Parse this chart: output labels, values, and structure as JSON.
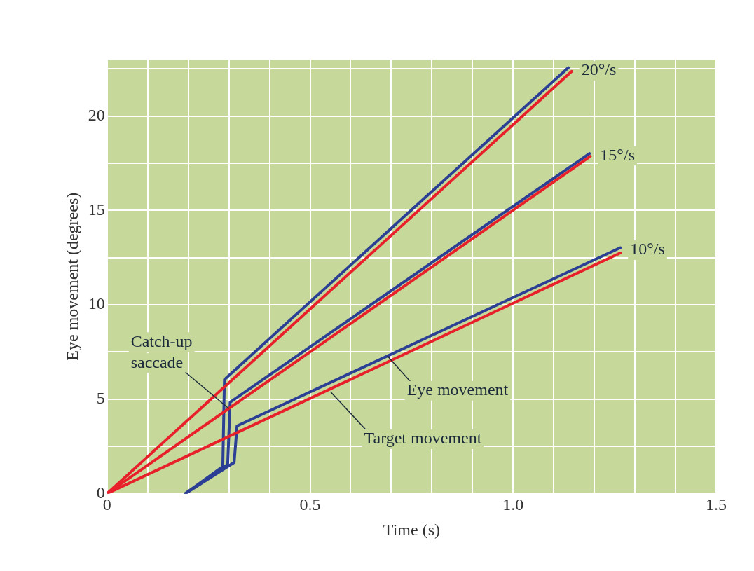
{
  "chart_data": {
    "type": "line",
    "xlabel": "Time (s)",
    "ylabel": "Eye movement (degrees)",
    "xlim": [
      0,
      1.5
    ],
    "ylim": [
      0,
      23
    ],
    "xticks": [
      0,
      {
        "value": 0.1,
        "label": null
      },
      {
        "value": 0.2,
        "label": null
      },
      {
        "value": 0.3,
        "label": null
      },
      {
        "value": 0.4,
        "label": null
      },
      0.5,
      {
        "value": 0.6,
        "label": null
      },
      {
        "value": 0.7,
        "label": null
      },
      {
        "value": 0.8,
        "label": null
      },
      {
        "value": 0.9,
        "label": null
      },
      {
        "value": 1.0,
        "label": "1.0"
      },
      {
        "value": 1.1,
        "label": null
      },
      {
        "value": 1.2,
        "label": null
      },
      {
        "value": 1.3,
        "label": null
      },
      {
        "value": 1.4,
        "label": null
      },
      1.5
    ],
    "yticks": [
      0,
      {
        "value": 2.5,
        "label": null
      },
      5,
      {
        "value": 7.5,
        "label": null
      },
      10,
      {
        "value": 12.5,
        "label": null
      },
      15,
      {
        "value": 17.5,
        "label": null
      },
      20,
      {
        "value": 22.5,
        "label": null
      }
    ],
    "grid": true,
    "legend": false,
    "marker": "none",
    "line_style": "solid",
    "series": [
      {
        "color": "#e8202a",
        "x": [
          0,
          1.144
        ],
        "values": [
          0,
          22.37
        ]
      },
      {
        "color": "#e8202a",
        "x": [
          0,
          1.19
        ],
        "values": [
          0,
          17.87
        ]
      },
      {
        "color": "#e8202a",
        "x": [
          0,
          1.264
        ],
        "values": [
          0,
          12.75
        ]
      },
      {
        "color": "#2b3f95",
        "x": [
          0.193,
          0.285,
          0.289,
          1.136
        ],
        "values": [
          0,
          1.43,
          6.04,
          22.57
        ]
      },
      {
        "color": "#2b3f95",
        "x": [
          0.193,
          0.297,
          0.303,
          1.188
        ],
        "values": [
          0,
          1.54,
          4.84,
          18.02
        ]
      },
      {
        "color": "#2b3f95",
        "x": [
          0.193,
          0.313,
          0.32,
          1.264
        ],
        "values": [
          0,
          1.65,
          3.58,
          13.03
        ]
      }
    ],
    "annotations": [
      {
        "text": "20°/s",
        "x": 1.144,
        "y": 22.4
      },
      {
        "text": "15°/s",
        "x": 1.19,
        "y": 17.9
      },
      {
        "text": "10°/s",
        "x": 1.264,
        "y": 12.9
      },
      {
        "text": "Catch-up\nsaccade",
        "x": 0.3,
        "y": 4.5
      },
      {
        "text": "Eye movement",
        "x": 0.69,
        "y": 7.3
      },
      {
        "text": "Target movement",
        "x": 0.55,
        "y": 5.4
      }
    ]
  }
}
